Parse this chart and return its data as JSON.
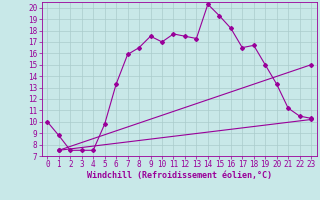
{
  "xlabel": "Windchill (Refroidissement éolien,°C)",
  "bg_color": "#c8e8e8",
  "line_color": "#990099",
  "xlim": [
    -0.5,
    23.5
  ],
  "ylim": [
    7,
    20.5
  ],
  "xticks": [
    0,
    1,
    2,
    3,
    4,
    5,
    6,
    7,
    8,
    9,
    10,
    11,
    12,
    13,
    14,
    15,
    16,
    17,
    18,
    19,
    20,
    21,
    22,
    23
  ],
  "yticks": [
    7,
    8,
    9,
    10,
    11,
    12,
    13,
    14,
    15,
    16,
    17,
    18,
    19,
    20
  ],
  "line1_x": [
    0,
    1,
    2,
    3,
    4,
    5,
    6,
    7,
    8,
    9,
    10,
    11,
    12,
    13,
    14,
    15,
    16,
    17,
    18,
    19,
    20,
    21,
    22,
    23
  ],
  "line1_y": [
    10.0,
    8.8,
    7.5,
    7.5,
    7.5,
    9.8,
    13.3,
    15.9,
    16.5,
    17.5,
    17.0,
    17.7,
    17.5,
    17.3,
    20.3,
    19.3,
    18.2,
    16.5,
    16.7,
    15.0,
    13.3,
    11.2,
    10.5,
    10.3
  ],
  "line2_x": [
    1,
    23
  ],
  "line2_y": [
    7.5,
    15.0
  ],
  "line3_x": [
    1,
    23
  ],
  "line3_y": [
    7.5,
    10.2
  ],
  "marker": "D",
  "marker_size": 2,
  "linewidth": 0.8,
  "grid_color": "#aacccc",
  "xlabel_fontsize": 6,
  "tick_fontsize": 5.5
}
